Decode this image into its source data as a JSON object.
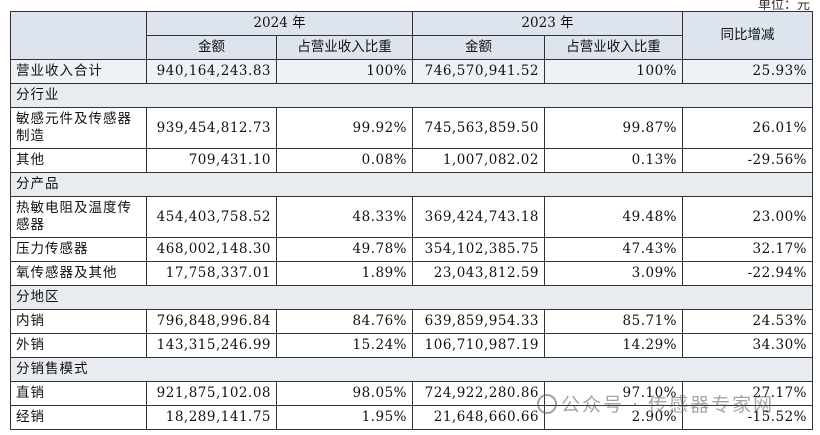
{
  "unit_label": "单位：元",
  "header": {
    "year_2024": "2024 年",
    "year_2023": "2023 年",
    "yoy": "同比增减",
    "amount": "金额",
    "share": "占营业收入比重"
  },
  "total": {
    "label": "营业收入合计",
    "amt2024": "940,164,243.83",
    "pct2024": "100%",
    "amt2023": "746,570,941.52",
    "pct2023": "100%",
    "yoy": "25.93%"
  },
  "sections": [
    {
      "title": "分行业",
      "rows": [
        {
          "label": "敏感元件及传感器制造",
          "amt2024": "939,454,812.73",
          "pct2024": "99.92%",
          "amt2023": "745,563,859.50",
          "pct2023": "99.87%",
          "yoy": "26.01%"
        },
        {
          "label": "其他",
          "amt2024": "709,431.10",
          "pct2024": "0.08%",
          "amt2023": "1,007,082.02",
          "pct2023": "0.13%",
          "yoy": "-29.56%"
        }
      ]
    },
    {
      "title": "分产品",
      "rows": [
        {
          "label": "热敏电阻及温度传感器",
          "amt2024": "454,403,758.52",
          "pct2024": "48.33%",
          "amt2023": "369,424,743.18",
          "pct2023": "49.48%",
          "yoy": "23.00%"
        },
        {
          "label": "压力传感器",
          "amt2024": "468,002,148.30",
          "pct2024": "49.78%",
          "amt2023": "354,102,385.75",
          "pct2023": "47.43%",
          "yoy": "32.17%"
        },
        {
          "label": "氧传感器及其他",
          "amt2024": "17,758,337.01",
          "pct2024": "1.89%",
          "amt2023": "23,043,812.59",
          "pct2023": "3.09%",
          "yoy": "-22.94%"
        }
      ]
    },
    {
      "title": "分地区",
      "rows": [
        {
          "label": "内销",
          "amt2024": "796,848,996.84",
          "pct2024": "84.76%",
          "amt2023": "639,859,954.33",
          "pct2023": "85.71%",
          "yoy": "24.53%"
        },
        {
          "label": "外销",
          "amt2024": "143,315,246.99",
          "pct2024": "15.24%",
          "amt2023": "106,710,987.19",
          "pct2023": "14.29%",
          "yoy": "34.30%"
        }
      ]
    },
    {
      "title": "分销售模式",
      "rows": [
        {
          "label": "直销",
          "amt2024": "921,875,102.08",
          "pct2024": "98.05%",
          "amt2023": "724,922,280.86",
          "pct2023": "97.10%",
          "yoy": "27.17%"
        },
        {
          "label": "经销",
          "amt2024": "18,289,141.75",
          "pct2024": "1.95%",
          "amt2023": "21,648,660.66",
          "pct2023": "2.90%",
          "yoy": "-15.52%"
        }
      ]
    }
  ],
  "watermark": "公众号 · 传感器专家网"
}
